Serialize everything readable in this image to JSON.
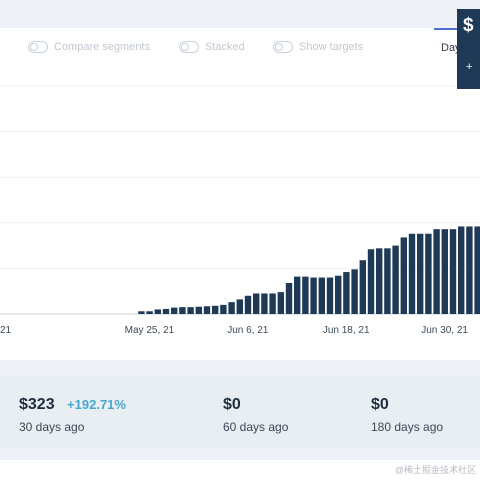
{
  "toolbar": {
    "compare_label": "Compare segments",
    "stacked_label": "Stacked",
    "targets_label": "Show targets",
    "day_tab": "Day"
  },
  "tooltip": {
    "value": "$",
    "change": "+"
  },
  "chart_data": {
    "type": "bar",
    "color": "#1f3a57",
    "xticks": [
      "21",
      "May 25, 21",
      "Jun 6, 21",
      "Jun 18, 21",
      "Jun 30, 21"
    ],
    "tick_days": [
      8,
      25,
      37,
      49,
      61
    ],
    "day_start": 8,
    "ylim": [
      0,
      100
    ],
    "grid": true,
    "values": [
      {
        "day": 24,
        "v": 1.2
      },
      {
        "day": 25,
        "v": 1.2
      },
      {
        "day": 26,
        "v": 2
      },
      {
        "day": 27,
        "v": 2.2
      },
      {
        "day": 28,
        "v": 2.8
      },
      {
        "day": 29,
        "v": 3
      },
      {
        "day": 30,
        "v": 3
      },
      {
        "day": 31,
        "v": 3.2
      },
      {
        "day": 32,
        "v": 3.4
      },
      {
        "day": 33,
        "v": 3.6
      },
      {
        "day": 34,
        "v": 4
      },
      {
        "day": 35,
        "v": 5.2
      },
      {
        "day": 36,
        "v": 6.4
      },
      {
        "day": 37,
        "v": 8
      },
      {
        "day": 38,
        "v": 9
      },
      {
        "day": 39,
        "v": 9
      },
      {
        "day": 40,
        "v": 9
      },
      {
        "day": 41,
        "v": 9.6
      },
      {
        "day": 42,
        "v": 13.6
      },
      {
        "day": 43,
        "v": 16.4
      },
      {
        "day": 44,
        "v": 16.4
      },
      {
        "day": 45,
        "v": 16
      },
      {
        "day": 46,
        "v": 16
      },
      {
        "day": 47,
        "v": 16
      },
      {
        "day": 48,
        "v": 16.8
      },
      {
        "day": 49,
        "v": 18.4
      },
      {
        "day": 50,
        "v": 19.6
      },
      {
        "day": 51,
        "v": 23.6
      },
      {
        "day": 52,
        "v": 28.4
      },
      {
        "day": 53,
        "v": 28.8
      },
      {
        "day": 54,
        "v": 28.8
      },
      {
        "day": 55,
        "v": 30
      },
      {
        "day": 56,
        "v": 33.6
      },
      {
        "day": 57,
        "v": 35.2
      },
      {
        "day": 58,
        "v": 35.2
      },
      {
        "day": 59,
        "v": 35.2
      },
      {
        "day": 60,
        "v": 37.2
      },
      {
        "day": 61,
        "v": 37.2
      },
      {
        "day": 62,
        "v": 37.2
      },
      {
        "day": 63,
        "v": 38.4
      },
      {
        "day": 64,
        "v": 38.4
      },
      {
        "day": 65,
        "v": 38.4
      },
      {
        "day": 66,
        "v": 38.4
      },
      {
        "day": 67,
        "v": 38.4
      },
      {
        "day": 68,
        "v": 39.6
      },
      {
        "day": 69,
        "v": 39.6
      },
      {
        "day": 70,
        "v": 41.2
      }
    ]
  },
  "stats": [
    {
      "value": "$323",
      "change": "+192.71%",
      "period": "30 days ago"
    },
    {
      "value": "$0",
      "change": "",
      "period": "60 days ago"
    },
    {
      "value": "$0",
      "change": "",
      "period": "180 days ago"
    }
  ],
  "watermark": "@稀土掘金技术社区"
}
